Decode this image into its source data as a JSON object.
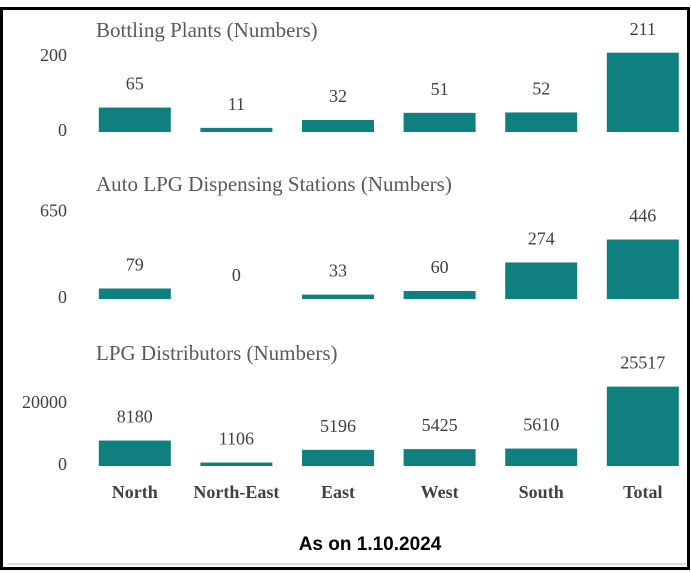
{
  "chart_data": [
    {
      "type": "bar",
      "title": "Bottling Plants (Numbers)",
      "values": [
        65,
        11,
        32,
        51,
        52,
        211
      ],
      "color": "#0f7f7f",
      "ylim": [
        0,
        250
      ],
      "yticks": [
        0,
        200
      ]
    },
    {
      "type": "bar",
      "title": "Auto LPG Dispensing Stations (Numbers)",
      "values": [
        79,
        0,
        33,
        60,
        274,
        446
      ],
      "color": "#0f7f7f",
      "ylim": [
        0,
        750
      ],
      "yticks": [
        0,
        650
      ]
    },
    {
      "type": "bar",
      "title": "LPG Distributors (Numbers)",
      "categories": [
        "North",
        "North-East",
        "East",
        "West",
        "South",
        "Total"
      ],
      "values": [
        8180,
        1106,
        5196,
        5425,
        5610,
        25517
      ],
      "color": "#0f7f7f",
      "ylim": [
        0,
        27000
      ],
      "yticks": [
        0,
        20000
      ]
    }
  ],
  "footnote": "As on 1.10.2024"
}
